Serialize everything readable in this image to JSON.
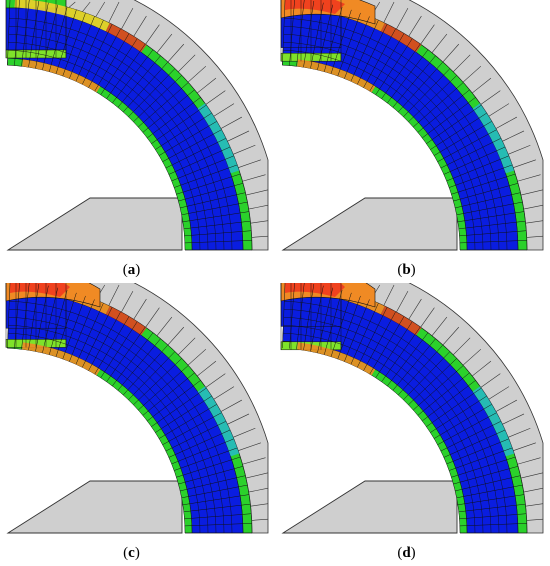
{
  "figure": {
    "panels": [
      {
        "id": "a",
        "caption": "(a)",
        "label": "a"
      },
      {
        "id": "b",
        "caption": "(b)",
        "label": "b"
      },
      {
        "id": "c",
        "caption": "(c)",
        "label": "c"
      },
      {
        "id": "d",
        "caption": "(d)",
        "label": "d"
      }
    ]
  },
  "colors": {
    "core": "#0a1de0",
    "band_green": "#2bd12b",
    "band_light_green": "#7fe22a",
    "band_yellow": "#e7d02a",
    "band_orange": "#f08a24",
    "band_red": "#ef3a1e",
    "band_cyan": "#26b6d6",
    "mesh": "#111111",
    "die": "#cfcfcf",
    "die_edge": "#333333"
  }
}
